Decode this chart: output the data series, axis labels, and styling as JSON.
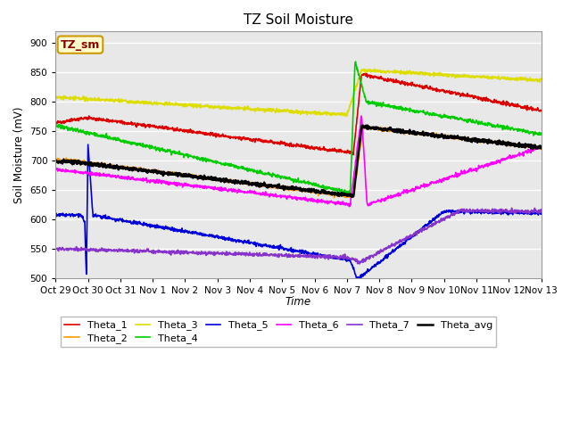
{
  "title": "TZ Soil Moisture",
  "xlabel": "Time",
  "ylabel": "Soil Moisture (mV)",
  "ylim": [
    500,
    920
  ],
  "yticks": [
    500,
    550,
    600,
    650,
    700,
    750,
    800,
    850,
    900
  ],
  "bg_color": "#e8e8e8",
  "legend_label": "TZ_sm",
  "legend_label_color": "#8b0000",
  "legend_box_color": "#ffffcc",
  "colors": {
    "Theta_1": "#dd0000",
    "Theta_2": "#ff9900",
    "Theta_3": "#dddd00",
    "Theta_4": "#00cc00",
    "Theta_5": "#0000dd",
    "Theta_6": "#ff00ff",
    "Theta_7": "#8833cc",
    "Theta_avg": "#000000"
  },
  "date_labels": [
    "Oct 29",
    "Oct 30",
    "Oct 31",
    "Nov 1",
    "Nov 2",
    "Nov 3",
    "Nov 4",
    "Nov 5",
    "Nov 6",
    "Nov 7",
    "Nov 8",
    "Nov 9",
    "Nov 10",
    "Nov 11",
    "Nov 12",
    "Nov 13"
  ]
}
